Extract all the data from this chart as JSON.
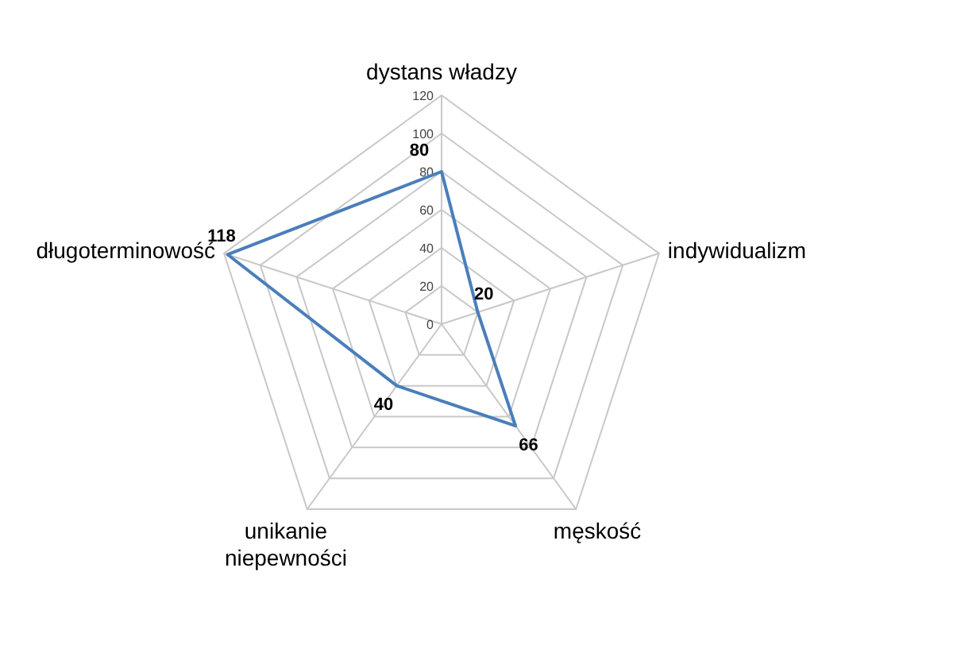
{
  "chart_data": {
    "type": "radar",
    "categories": [
      "dystans władzy",
      "indywidualizm",
      "męskość",
      "unikanie niepewności",
      "długoterminowość"
    ],
    "series": [
      {
        "color": "#4a7ebb",
        "values": [
          80,
          20,
          66,
          40,
          118
        ]
      }
    ],
    "ylim": [
      0,
      120
    ],
    "yticks": [
      0,
      20,
      40,
      60,
      80,
      100,
      120
    ],
    "grid": true,
    "data_labels": true,
    "marker": "none"
  }
}
